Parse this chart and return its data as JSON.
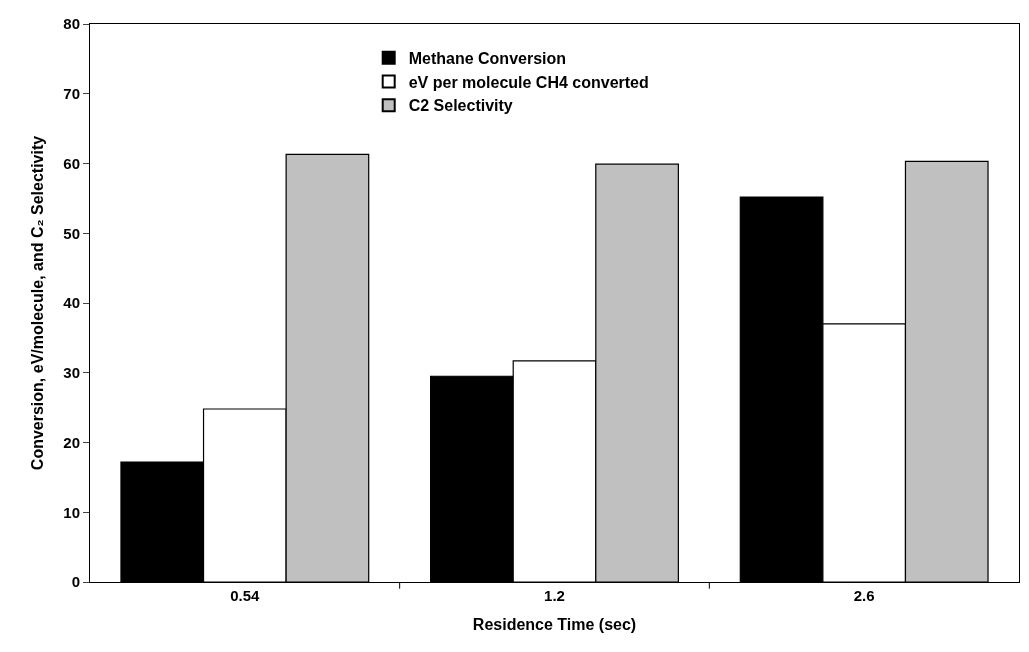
{
  "chart_data": {
    "type": "bar",
    "xlabel": "Residence Time (sec)",
    "ylabel": "Conversion, eV/molecule, and C₂ Selectivity",
    "categories": [
      "0.54",
      "1.2",
      "2.6"
    ],
    "series": [
      {
        "name": "Methane Conversion",
        "color": "#000000",
        "values": [
          17.2,
          29.5,
          55.2
        ]
      },
      {
        "name": "eV per molecule CH4 converted",
        "color": "#ffffff",
        "values": [
          24.8,
          31.7,
          37.0
        ]
      },
      {
        "name": "C2 Selectivity",
        "color": "#c0c0c0",
        "values": [
          61.3,
          59.9,
          60.3
        ]
      }
    ],
    "ylim": [
      0,
      80
    ],
    "yticks": [
      0,
      10,
      20,
      30,
      40,
      50,
      60,
      70,
      80
    ],
    "legend": "top"
  }
}
